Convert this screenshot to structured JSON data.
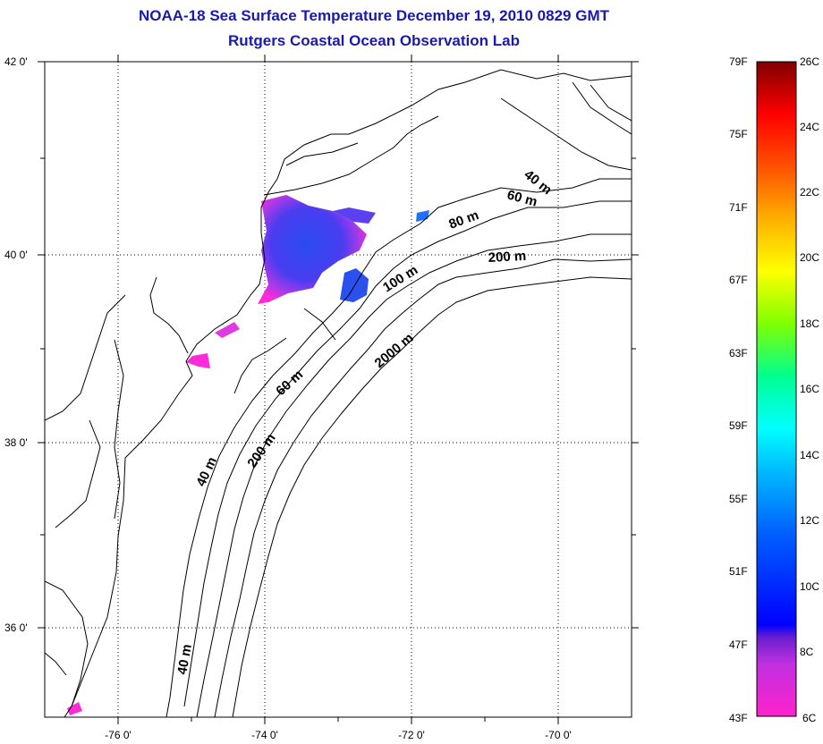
{
  "title": {
    "line1": "NOAA-18 Sea Surface Temperature December 19, 2010 0829 GMT",
    "line2": "Rutgers Coastal Ocean Observation Lab"
  },
  "map": {
    "lat_labels": [
      "42 0'",
      "40 0'",
      "38 0'",
      "36 0'"
    ],
    "lon_labels": [
      "-76 0'",
      "-74 0'",
      "-72 0'",
      "-70 0'"
    ],
    "contour_labels": [
      "40 m",
      "60 m",
      "80 m",
      "200 m",
      "100 m",
      "2000 m",
      "60 m",
      "200 m",
      "40 m",
      "40 m"
    ]
  },
  "colorbar": {
    "fahrenheit": [
      "79F",
      "75F",
      "71F",
      "67F",
      "63F",
      "59F",
      "55F",
      "51F",
      "47F",
      "43F"
    ],
    "celsius": [
      "26C",
      "24C",
      "22C",
      "20C",
      "18C",
      "16C",
      "14C",
      "12C",
      "10C",
      "8C",
      "6C"
    ],
    "colors": [
      "#ff22cc",
      "#8a2be2",
      "#0000ff",
      "#00bfff",
      "#00ffff",
      "#00ff88",
      "#80ff00",
      "#ffff00",
      "#ff8000",
      "#ff0000",
      "#800000"
    ]
  }
}
